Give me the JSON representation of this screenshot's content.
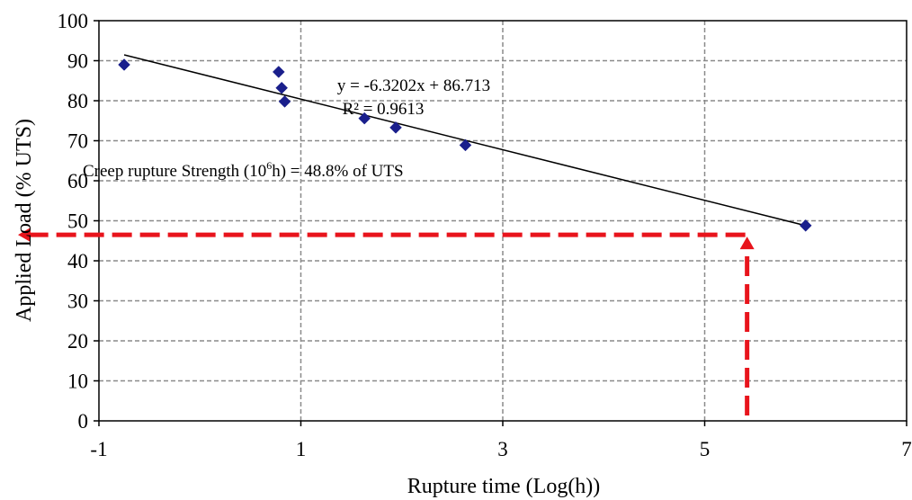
{
  "chart_data": {
    "type": "scatter",
    "title": "",
    "xlabel": "Rupture time (Log(h))",
    "ylabel": "Applied Load (% UTS)",
    "xlim": [
      -1,
      7
    ],
    "ylim": [
      0,
      100
    ],
    "xticks": [
      -1,
      1,
      3,
      5,
      7
    ],
    "yticks": [
      0,
      10,
      20,
      30,
      40,
      50,
      60,
      70,
      80,
      90,
      100
    ],
    "grid": true,
    "grid_style": "dashed",
    "series": [
      {
        "marker": "diamond",
        "color": "#1a1f8c",
        "x": [
          -0.75,
          0.78,
          0.81,
          0.84,
          1.63,
          1.94,
          2.63,
          6.0
        ],
        "y": [
          89.0,
          87.2,
          83.2,
          79.8,
          75.6,
          73.3,
          68.9,
          48.8
        ]
      }
    ],
    "trendline": {
      "slope": -6.3202,
      "intercept": 86.713,
      "x_range": [
        -0.75,
        6.0
      ],
      "equation": "y = -6.3202x + 86.713",
      "r_squared": "R² = 0.9613",
      "color": "#000000"
    },
    "annotation": {
      "prefix": "Creep rupture Strength (10",
      "superscript": "6",
      "suffix": "h) = 48.8%  of UTS"
    },
    "reference_lines": {
      "color": "#e8141c",
      "style": "dashed",
      "x": 5.42,
      "y": 46.5
    }
  }
}
